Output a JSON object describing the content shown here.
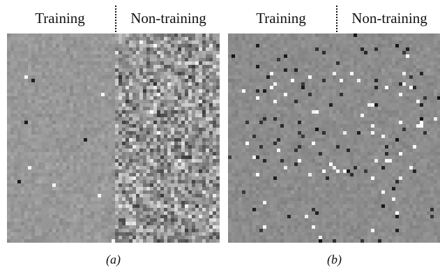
{
  "figure": {
    "panels": [
      {
        "id": "a",
        "left_header": "Training",
        "right_header": "Non-training",
        "caption": "(a)",
        "left_noise": "low",
        "right_noise": "high"
      },
      {
        "id": "b",
        "left_header": "Training",
        "right_header": "Non-training",
        "caption": "(b)",
        "left_noise": "low-sparse",
        "right_noise": "low-sparse"
      }
    ]
  }
}
